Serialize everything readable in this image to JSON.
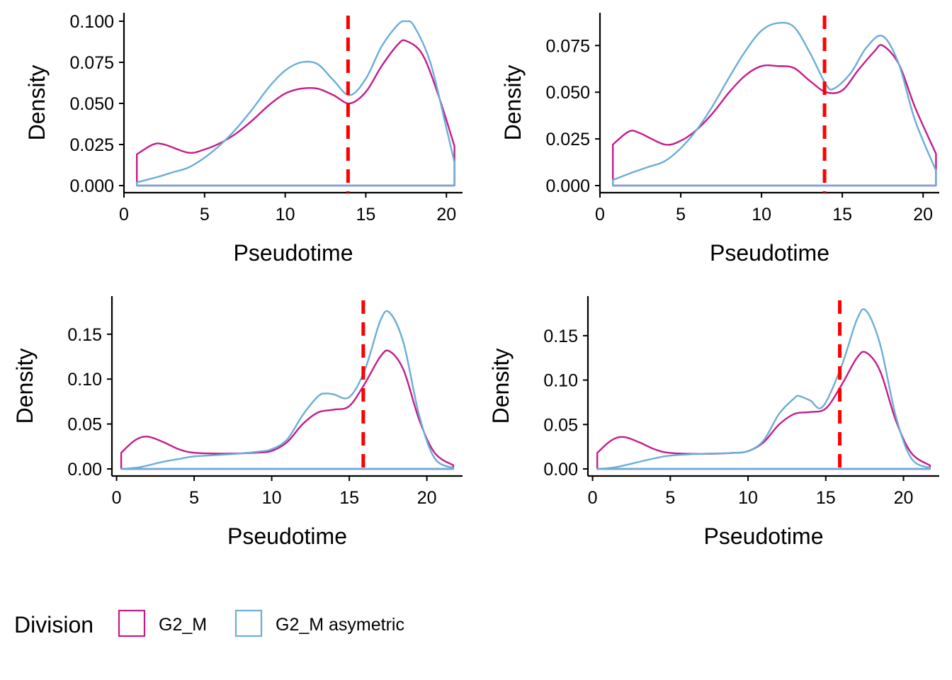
{
  "legend": {
    "title": "Division",
    "items": [
      {
        "label": "G2_M",
        "color": "#C51B8A"
      },
      {
        "label": "G2_M asymetric",
        "color": "#6BAED6"
      }
    ]
  },
  "chart_data": [
    {
      "type": "area",
      "xlabel": "Pseudotime",
      "ylabel": "Density",
      "xlim": [
        0,
        21
      ],
      "ylim": [
        0,
        0.1
      ],
      "xticks": [
        0,
        5,
        10,
        15,
        20
      ],
      "xtick_labels": [
        "0",
        "5",
        "10",
        "15",
        "20"
      ],
      "yticks": [
        0,
        0.025,
        0.05,
        0.075,
        0.1
      ],
      "ytick_labels": [
        "0.000",
        "0.025",
        "0.050",
        "0.075",
        "0.100"
      ],
      "vline": {
        "x": 13.9,
        "color": "#FF0000",
        "style": "dashed"
      },
      "series": [
        {
          "name": "G2_M",
          "color": "#C51B8A",
          "x": [
            0.8,
            1.8,
            2.5,
            4,
            5,
            6,
            7,
            8,
            9,
            10,
            11,
            12,
            13,
            14,
            15,
            16,
            17,
            17.5,
            18.5,
            19.5,
            20.5
          ],
          "y": [
            0.019,
            0.025,
            0.025,
            0.02,
            0.022,
            0.026,
            0.032,
            0.04,
            0.049,
            0.056,
            0.059,
            0.059,
            0.055,
            0.05,
            0.057,
            0.073,
            0.086,
            0.088,
            0.08,
            0.055,
            0.024
          ]
        },
        {
          "name": "G2_M asymetric",
          "color": "#6BAED6",
          "x": [
            0.8,
            2,
            3,
            4,
            5,
            6,
            7,
            8,
            9,
            10,
            11,
            12,
            13,
            14,
            15,
            16,
            17,
            17.5,
            18,
            19,
            20,
            20.5
          ],
          "y": [
            0.002,
            0.005,
            0.008,
            0.011,
            0.017,
            0.025,
            0.035,
            0.047,
            0.06,
            0.07,
            0.075,
            0.074,
            0.064,
            0.055,
            0.065,
            0.085,
            0.098,
            0.1,
            0.097,
            0.075,
            0.035,
            0.014
          ]
        }
      ]
    },
    {
      "type": "area",
      "xlabel": "Pseudotime",
      "ylabel": "Density",
      "xlim": [
        0,
        21
      ],
      "ylim": [
        0,
        0.088
      ],
      "xticks": [
        0,
        5,
        10,
        15,
        20
      ],
      "xtick_labels": [
        "0",
        "5",
        "10",
        "15",
        "20"
      ],
      "yticks": [
        0,
        0.025,
        0.05,
        0.075
      ],
      "ytick_labels": [
        "0.000",
        "0.025",
        "0.050",
        "0.075"
      ],
      "vline": {
        "x": 13.9,
        "color": "#FF0000",
        "style": "dashed"
      },
      "series": [
        {
          "name": "G2_M",
          "color": "#C51B8A",
          "x": [
            0.8,
            1.8,
            2.5,
            4,
            5,
            6,
            7,
            8,
            9,
            10,
            11,
            12,
            13,
            14,
            15,
            16,
            17,
            17.5,
            18.5,
            19.5,
            20.8
          ],
          "y": [
            0.022,
            0.029,
            0.028,
            0.022,
            0.024,
            0.03,
            0.039,
            0.05,
            0.059,
            0.064,
            0.064,
            0.063,
            0.056,
            0.05,
            0.051,
            0.062,
            0.072,
            0.075,
            0.065,
            0.042,
            0.017
          ]
        },
        {
          "name": "G2_M asymetric",
          "color": "#6BAED6",
          "x": [
            0.8,
            2,
            3,
            4,
            5,
            6,
            7,
            8,
            9,
            10,
            11,
            12,
            13,
            14,
            14.5,
            15.5,
            16.5,
            17.5,
            18.5,
            19.5,
            20.8
          ],
          "y": [
            0.003,
            0.007,
            0.01,
            0.013,
            0.02,
            0.03,
            0.043,
            0.058,
            0.072,
            0.083,
            0.087,
            0.085,
            0.071,
            0.054,
            0.052,
            0.06,
            0.074,
            0.08,
            0.065,
            0.035,
            0.008
          ]
        }
      ]
    },
    {
      "type": "area",
      "xlabel": "Pseudotime",
      "ylabel": "Density",
      "xlim": [
        -0.3,
        22.3
      ],
      "ylim": [
        0,
        0.183
      ],
      "xticks": [
        0,
        5,
        10,
        15,
        20
      ],
      "xtick_labels": [
        "0",
        "5",
        "10",
        "15",
        "20"
      ],
      "yticks": [
        0,
        0.05,
        0.1,
        0.15
      ],
      "ytick_labels": [
        "0.00",
        "0.05",
        "0.10",
        "0.15"
      ],
      "vline": {
        "x": 15.9,
        "color": "#FF0000",
        "style": "dashed"
      },
      "series": [
        {
          "name": "G2_M",
          "color": "#C51B8A",
          "x": [
            0.3,
            1.2,
            2,
            3,
            4,
            5,
            7,
            9,
            10,
            11,
            12,
            13,
            14,
            15,
            16,
            17,
            17.6,
            18.5,
            19.5,
            20.5,
            21.7
          ],
          "y": [
            0.018,
            0.032,
            0.036,
            0.03,
            0.022,
            0.018,
            0.017,
            0.018,
            0.02,
            0.03,
            0.05,
            0.063,
            0.066,
            0.07,
            0.095,
            0.125,
            0.131,
            0.11,
            0.055,
            0.018,
            0.004
          ]
        },
        {
          "name": "G2_M asymetric",
          "color": "#6BAED6",
          "x": [
            0.3,
            1.5,
            3,
            4,
            5,
            7,
            9,
            10,
            11,
            12,
            13,
            13.5,
            14,
            15,
            16,
            17,
            17.6,
            18.5,
            19.5,
            20.5,
            21.7
          ],
          "y": [
            0.0,
            0.002,
            0.008,
            0.011,
            0.014,
            0.016,
            0.019,
            0.022,
            0.033,
            0.06,
            0.081,
            0.084,
            0.083,
            0.08,
            0.11,
            0.165,
            0.174,
            0.14,
            0.06,
            0.012,
            0.001
          ]
        }
      ]
    },
    {
      "type": "area",
      "xlabel": "Pseudotime",
      "ylabel": "Density",
      "xlim": [
        -0.3,
        22.3
      ],
      "ylim": [
        0,
        0.185
      ],
      "xticks": [
        0,
        5,
        10,
        15,
        20
      ],
      "xtick_labels": [
        "0",
        "5",
        "10",
        "15",
        "20"
      ],
      "yticks": [
        0,
        0.05,
        0.1,
        0.15
      ],
      "ytick_labels": [
        "0.00",
        "0.05",
        "0.10",
        "0.15"
      ],
      "vline": {
        "x": 15.9,
        "color": "#FF0000",
        "style": "dashed"
      },
      "series": [
        {
          "name": "G2_M",
          "color": "#C51B8A",
          "x": [
            0.3,
            1.2,
            2,
            3,
            4,
            5,
            7,
            9,
            10,
            11,
            12,
            13,
            14,
            15,
            16,
            17,
            17.6,
            18.5,
            19.5,
            20.5,
            21.7
          ],
          "y": [
            0.018,
            0.032,
            0.036,
            0.03,
            0.022,
            0.018,
            0.017,
            0.018,
            0.02,
            0.03,
            0.05,
            0.062,
            0.064,
            0.068,
            0.094,
            0.125,
            0.131,
            0.11,
            0.055,
            0.018,
            0.004
          ]
        },
        {
          "name": "G2_M asymetric",
          "color": "#6BAED6",
          "x": [
            0.3,
            1.5,
            3,
            4,
            5,
            7,
            9,
            10,
            11,
            12,
            13,
            13.3,
            14,
            14.8,
            16,
            17,
            17.6,
            18.5,
            19.5,
            20.5,
            21.7
          ],
          "y": [
            0.0,
            0.002,
            0.008,
            0.012,
            0.015,
            0.017,
            0.018,
            0.02,
            0.032,
            0.062,
            0.08,
            0.082,
            0.077,
            0.07,
            0.115,
            0.168,
            0.178,
            0.14,
            0.06,
            0.012,
            0.001
          ]
        }
      ]
    }
  ]
}
